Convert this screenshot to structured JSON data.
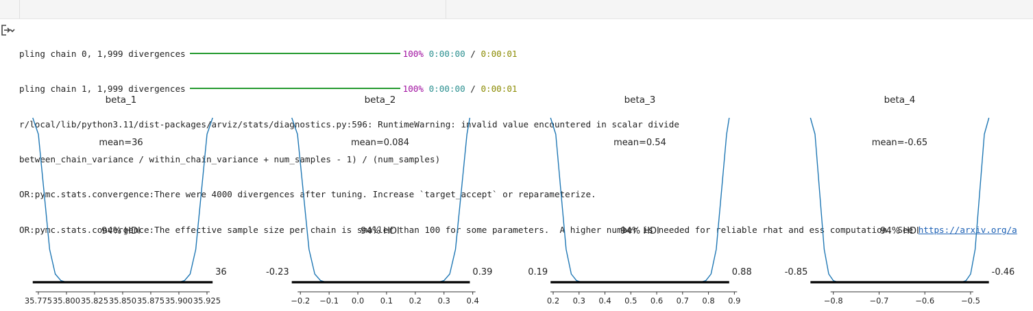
{
  "console": {
    "progress": [
      {
        "label": "pling chain 0, 1,999 divergences",
        "percent": "100%",
        "elapsed": "0:00:00",
        "sep": "/",
        "remaining": "0:00:01",
        "progress_fraction": 1.0
      },
      {
        "label": "pling chain 1, 1,999 divergences",
        "percent": "100%",
        "elapsed": "0:00:00",
        "sep": "/",
        "remaining": "0:00:01",
        "progress_fraction": 1.0
      }
    ],
    "warning_line1": "r/local/lib/python3.11/dist-packages/arviz/stats/diagnostics.py:596: RuntimeWarning: invalid value encountered in scalar divide",
    "warning_line2": "between_chain_variance / within_chain_variance + num_samples - 1) / (num_samples)",
    "error_line1": "OR:pymc.stats.convergence:There were 4000 divergences after tuning. Increase `target_accept` or reparameterize.",
    "error_line2_text": "OR:pymc.stats.convergence:The effective sample size per chain is smaller than 100 for some parameters.  A higher number is needed for reliable rhat and ess computation. See ",
    "error_line2_link": "https://arxiv.org/a"
  },
  "icons": {
    "output_toggle": "output-collapse-icon"
  },
  "colors": {
    "curve": "#1f77b4",
    "hdi": "#000000",
    "progress_bar": "#249a2f"
  },
  "chart_data": [
    {
      "type": "line",
      "title": "beta_1",
      "mean_label": "mean=36",
      "hdi_label": "94% HDI",
      "hdi": [
        35.77,
        35.93
      ],
      "hdi_low_label": "",
      "hdi_high_label": "36",
      "xlim": [
        35.761,
        35.936
      ],
      "xticks": [
        35.775,
        35.8,
        35.825,
        35.85,
        35.875,
        35.9,
        35.925
      ],
      "xtick_labels": [
        "35.775",
        "35.800",
        "35.825",
        "35.850",
        "35.875",
        "35.900",
        "35.925"
      ],
      "density_x": [
        35.77,
        35.775,
        35.78,
        35.785,
        35.79,
        35.795,
        35.8,
        35.9,
        35.905,
        35.91,
        35.915,
        35.92,
        35.925,
        35.93
      ],
      "density_y": [
        1.0,
        0.9,
        0.55,
        0.2,
        0.05,
        0.01,
        0.0,
        0.0,
        0.01,
        0.05,
        0.2,
        0.55,
        0.9,
        1.0
      ]
    },
    {
      "type": "line",
      "title": "beta_2",
      "mean_label": "mean=0.084",
      "hdi_label": "94% HDI",
      "hdi": [
        -0.23,
        0.39
      ],
      "hdi_low_label": "-0.23",
      "hdi_high_label": "0.39",
      "xlim": [
        -0.265,
        0.42
      ],
      "xticks": [
        -0.2,
        -0.1,
        0.0,
        0.1,
        0.2,
        0.3,
        0.4
      ],
      "xtick_labels": [
        "−0.2",
        "−0.1",
        "0.0",
        "0.1",
        "0.2",
        "0.3",
        "0.4"
      ],
      "density_x": [
        -0.23,
        -0.21,
        -0.19,
        -0.17,
        -0.15,
        -0.13,
        -0.11,
        0.28,
        0.3,
        0.32,
        0.34,
        0.36,
        0.38,
        0.39
      ],
      "density_y": [
        1.0,
        0.9,
        0.55,
        0.2,
        0.05,
        0.01,
        0.0,
        0.0,
        0.01,
        0.05,
        0.2,
        0.55,
        0.9,
        1.0
      ]
    },
    {
      "type": "line",
      "title": "beta_3",
      "mean_label": "mean=0.54",
      "hdi_label": "94% HDI",
      "hdi": [
        0.19,
        0.88
      ],
      "hdi_low_label": "0.19",
      "hdi_high_label": "0.88",
      "xlim": [
        0.155,
        0.915
      ],
      "xticks": [
        0.2,
        0.3,
        0.4,
        0.5,
        0.6,
        0.7,
        0.8,
        0.9
      ],
      "xtick_labels": [
        "0.2",
        "0.3",
        "0.4",
        "0.5",
        "0.6",
        "0.7",
        "0.8",
        "0.9"
      ],
      "density_x": [
        0.19,
        0.21,
        0.23,
        0.25,
        0.27,
        0.29,
        0.31,
        0.77,
        0.79,
        0.81,
        0.83,
        0.85,
        0.87,
        0.88
      ],
      "density_y": [
        1.0,
        0.9,
        0.55,
        0.2,
        0.05,
        0.01,
        0.0,
        0.0,
        0.01,
        0.05,
        0.2,
        0.55,
        0.9,
        1.0
      ]
    },
    {
      "type": "line",
      "title": "beta_4",
      "mean_label": "mean=-0.65",
      "hdi_label": "94% HDI",
      "hdi": [
        -0.85,
        -0.46
      ],
      "hdi_low_label": "-0.85",
      "hdi_high_label": "-0.46",
      "xlim": [
        -0.87,
        -0.44
      ],
      "xticks": [
        -0.8,
        -0.7,
        -0.6,
        -0.5
      ],
      "xtick_labels": [
        "−0.8",
        "−0.7",
        "−0.6",
        "−0.5"
      ],
      "density_x": [
        -0.85,
        -0.84,
        -0.83,
        -0.82,
        -0.81,
        -0.8,
        -0.79,
        -0.52,
        -0.51,
        -0.5,
        -0.49,
        -0.48,
        -0.47,
        -0.46
      ],
      "density_y": [
        1.0,
        0.9,
        0.55,
        0.2,
        0.05,
        0.01,
        0.0,
        0.0,
        0.01,
        0.05,
        0.2,
        0.55,
        0.9,
        1.0
      ]
    }
  ]
}
